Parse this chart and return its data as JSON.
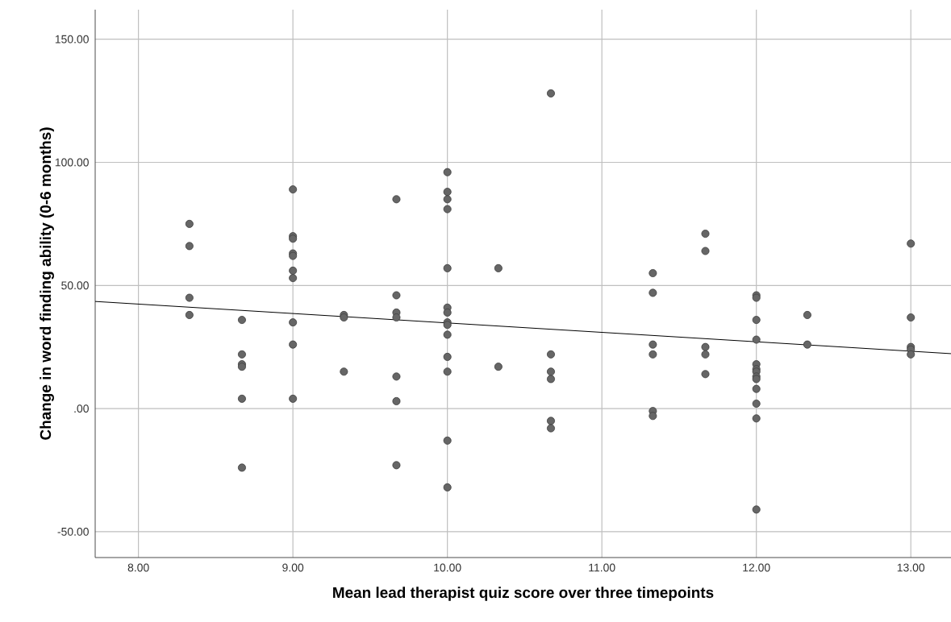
{
  "chart_data": {
    "type": "scatter",
    "xlabel": "Mean lead therapist quiz score over three timepoints",
    "ylabel": "Change in word finding ability (0-6 months)",
    "xlim": [
      7.72,
      13.26
    ],
    "ylim": [
      -60.5,
      162
    ],
    "xticks": [
      {
        "value": 8,
        "label": "8.00"
      },
      {
        "value": 9,
        "label": "9.00"
      },
      {
        "value": 10,
        "label": "10.00"
      },
      {
        "value": 11,
        "label": "11.00"
      },
      {
        "value": 12,
        "label": "12.00"
      },
      {
        "value": 13,
        "label": "13.00"
      }
    ],
    "yticks": [
      {
        "value": -50,
        "label": "-50.00"
      },
      {
        "value": 0,
        "label": ".00"
      },
      {
        "value": 50,
        "label": "50.00"
      },
      {
        "value": 100,
        "label": "100.00"
      },
      {
        "value": 150,
        "label": "150.00"
      }
    ],
    "grid": true,
    "marker": "circle",
    "series": [
      {
        "color": "#666666",
        "x": [
          8.33,
          8.33,
          8.33,
          8.33,
          8.67,
          8.67,
          8.67,
          8.67,
          8.67,
          8.67,
          9,
          9,
          9,
          9,
          9,
          9,
          9,
          9,
          9,
          9,
          9.33,
          9.33,
          9.33,
          9.67,
          9.67,
          9.67,
          9.67,
          9.67,
          9.67,
          9.67,
          10,
          10,
          10,
          10,
          10,
          10,
          10,
          10,
          10,
          10,
          10,
          10,
          10,
          10,
          10.33,
          10.33,
          10.67,
          10.67,
          10.67,
          10.67,
          10.67,
          10.67,
          11.33,
          11.33,
          11.33,
          11.33,
          11.33,
          11.33,
          11.67,
          11.67,
          11.67,
          11.67,
          11.67,
          12,
          12,
          12,
          12,
          12,
          12,
          12,
          12,
          12,
          12,
          12,
          12,
          12,
          12.33,
          12.33,
          13,
          13,
          13,
          13,
          13
        ],
        "values": [
          75,
          66,
          45,
          38,
          36,
          22,
          18,
          17,
          4,
          -24,
          89,
          70,
          69,
          63,
          62,
          56,
          53,
          35,
          26,
          4,
          38,
          37,
          15,
          85,
          46,
          39,
          37,
          13,
          3,
          -23,
          96,
          88,
          85,
          81,
          57,
          41,
          39,
          35,
          34,
          30,
          21,
          15,
          -13,
          -32,
          57,
          17,
          128,
          22,
          15,
          12,
          -5,
          -8,
          55,
          47,
          26,
          22,
          -1,
          -3,
          71,
          64,
          25,
          22,
          14,
          46,
          45,
          36,
          28,
          18,
          16,
          15,
          13,
          12,
          8,
          2,
          -4,
          -41,
          38,
          26,
          67,
          37,
          25,
          24,
          22
        ]
      },
      {
        "type": "line",
        "color": "#000000",
        "marker": "none",
        "x": [
          7.72,
          13.26
        ],
        "values": [
          43.5,
          22.3
        ]
      }
    ]
  }
}
